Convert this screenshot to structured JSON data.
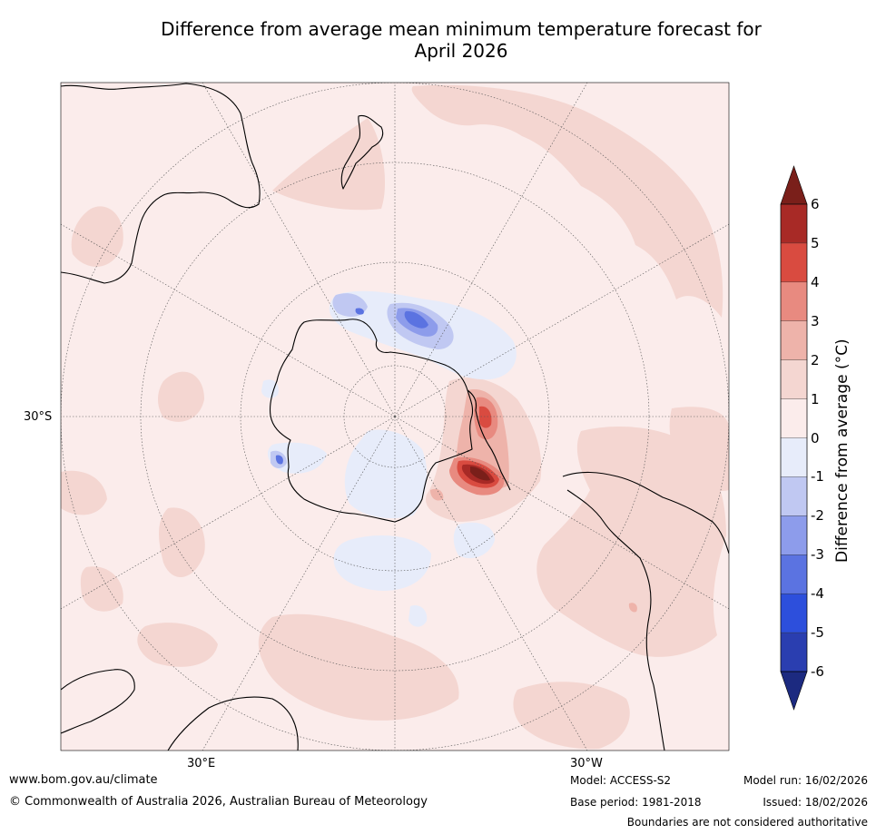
{
  "title_line1": "Difference from average mean minimum temperature forecast for",
  "title_line2": "April 2026",
  "lat_label": "30°S",
  "lon_label_east": "30°E",
  "lon_label_west": "30°W",
  "colorbar": {
    "label": "Difference from average (°C)",
    "ticks": [
      "6",
      "5",
      "4",
      "3",
      "2",
      "1",
      "0",
      "-1",
      "-2",
      "-3",
      "-4",
      "-5",
      "-6"
    ],
    "colors": [
      "#a82a26",
      "#d94b40",
      "#e88a80",
      "#eeb3aa",
      "#f4d6d1",
      "#fbeceb",
      "#e7ecfa",
      "#c0c8f2",
      "#8d9ceb",
      "#5b73e1",
      "#2d4fdc",
      "#2a3eb0"
    ],
    "over_color": "#7a1f1a",
    "under_color": "#1c2a80"
  },
  "footer": {
    "website": "www.bom.gov.au/climate",
    "copyright": "© Commonwealth of Australia 2026, Australian Bureau of Meteorology",
    "model": "Model: ACCESS-S2",
    "base_period": "Base period: 1981-2018",
    "model_run": "Model run: 16/02/2026",
    "issued": "Issued: 18/02/2026",
    "disclaimer": "Boundaries are not considered authoritative"
  }
}
